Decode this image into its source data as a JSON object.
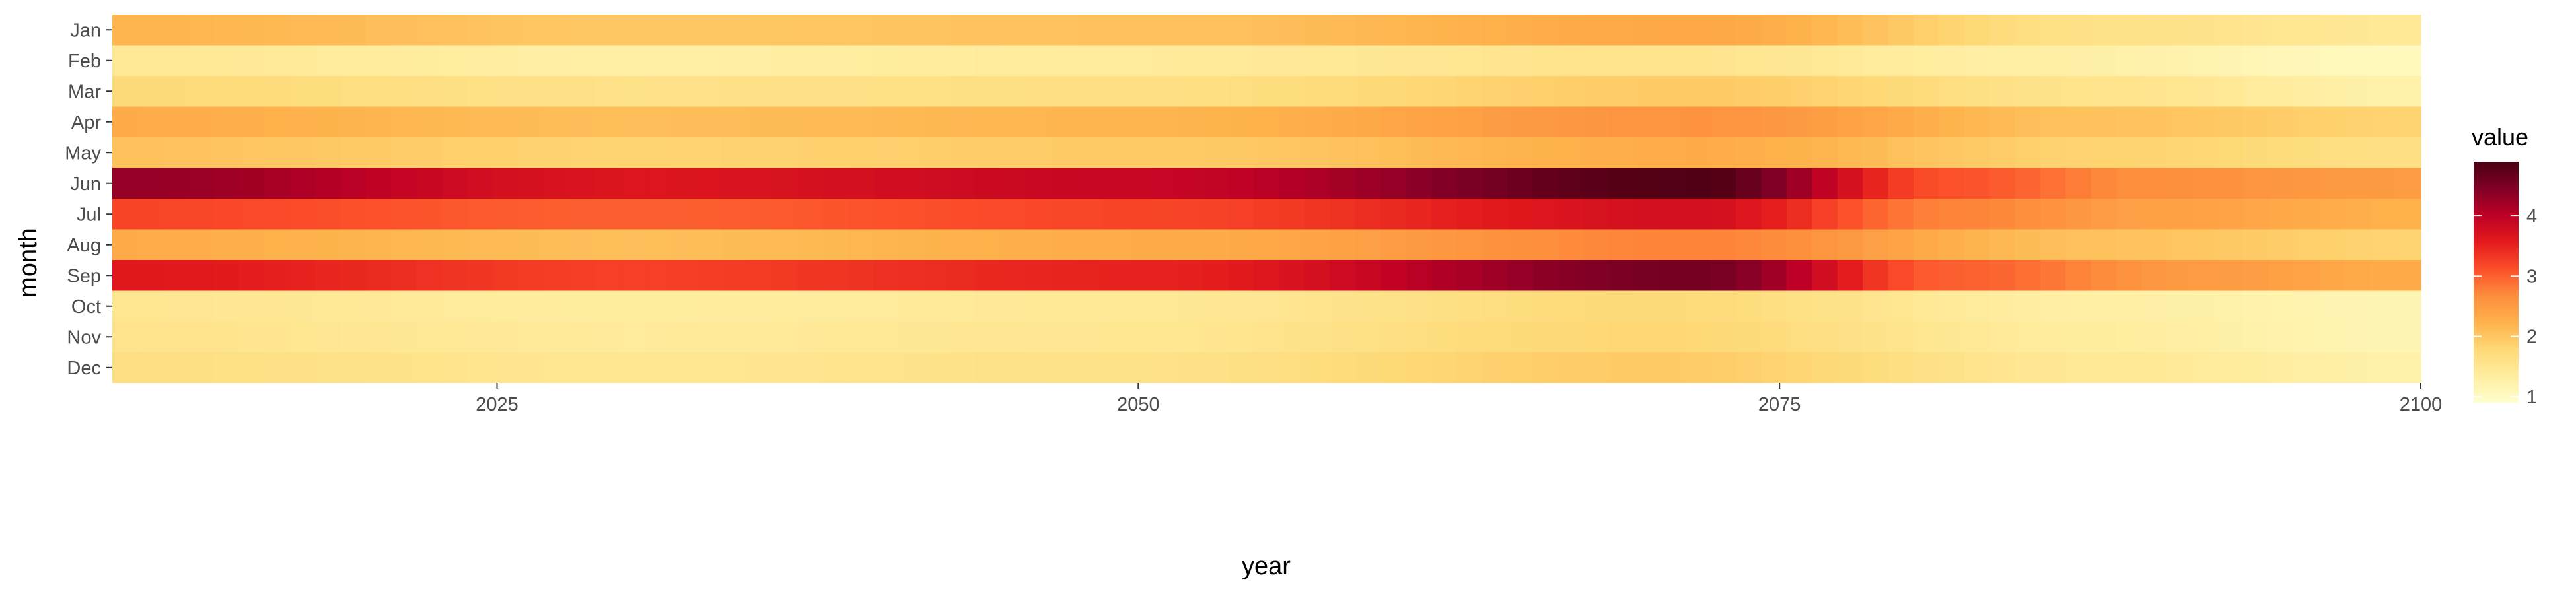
{
  "chart_data": {
    "type": "heatmap",
    "title": "",
    "xlabel": "year",
    "ylabel": "month",
    "x_range": [
      2010,
      2100
    ],
    "x_ticks": [
      2025,
      2050,
      2075,
      2100
    ],
    "months": [
      "Jan",
      "Feb",
      "Mar",
      "Apr",
      "May",
      "Jun",
      "Jul",
      "Aug",
      "Sep",
      "Oct",
      "Nov",
      "Dec"
    ],
    "legend": {
      "title": "value",
      "position": "right",
      "range": [
        0.9,
        4.9
      ],
      "ticks": [
        1,
        2,
        3,
        4
      ]
    },
    "color_scale": {
      "name": "YlOrRd",
      "stops": [
        "#ffffcc",
        "#ffeda0",
        "#fed976",
        "#feb24c",
        "#fd8d3c",
        "#fc4e2a",
        "#e31a1c",
        "#bd0026",
        "#800026",
        "#4a0012"
      ]
    },
    "series": [
      {
        "name": "Jan",
        "key_years": [
          2010,
          2030,
          2050,
          2072,
          2088,
          2100
        ],
        "key_values": [
          2.2,
          2.0,
          2.05,
          2.35,
          1.6,
          1.45
        ]
      },
      {
        "name": "Feb",
        "key_years": [
          2010,
          2030,
          2050,
          2070,
          2085,
          2100
        ],
        "key_values": [
          1.45,
          1.3,
          1.4,
          1.55,
          1.3,
          1.05
        ]
      },
      {
        "name": "Mar",
        "key_years": [
          2010,
          2030,
          2050,
          2072,
          2088,
          2100
        ],
        "key_values": [
          1.75,
          1.6,
          1.65,
          1.95,
          1.55,
          1.25
        ]
      },
      {
        "name": "Apr",
        "key_years": [
          2010,
          2030,
          2050,
          2072,
          2088,
          2100
        ],
        "key_values": [
          2.3,
          2.1,
          2.2,
          2.6,
          2.05,
          1.85
        ]
      },
      {
        "name": "May",
        "key_years": [
          2010,
          2030,
          2050,
          2072,
          2088,
          2100
        ],
        "key_values": [
          2.05,
          1.85,
          1.95,
          2.3,
          1.85,
          1.65
        ]
      },
      {
        "name": "Jun",
        "key_years": [
          2010,
          2030,
          2050,
          2072,
          2082,
          2090,
          2100
        ],
        "key_values": [
          4.3,
          3.65,
          3.9,
          4.85,
          3.1,
          2.65,
          2.5
        ]
      },
      {
        "name": "Jul",
        "key_years": [
          2010,
          2030,
          2050,
          2072,
          2082,
          2090,
          2100
        ],
        "key_values": [
          3.2,
          3.0,
          3.2,
          3.75,
          2.75,
          2.45,
          2.25
        ]
      },
      {
        "name": "Aug",
        "key_years": [
          2010,
          2030,
          2050,
          2072,
          2088,
          2100
        ],
        "key_values": [
          2.3,
          2.1,
          2.3,
          2.75,
          2.05,
          1.85
        ]
      },
      {
        "name": "Sep",
        "key_years": [
          2010,
          2030,
          2050,
          2072,
          2082,
          2092,
          2100
        ],
        "key_values": [
          3.6,
          3.25,
          3.5,
          4.55,
          3.0,
          2.5,
          2.3
        ]
      },
      {
        "name": "Oct",
        "key_years": [
          2010,
          2030,
          2050,
          2070,
          2088,
          2100
        ],
        "key_values": [
          1.5,
          1.35,
          1.45,
          1.75,
          1.3,
          1.15
        ]
      },
      {
        "name": "Nov",
        "key_years": [
          2010,
          2030,
          2050,
          2070,
          2088,
          2100
        ],
        "key_values": [
          1.55,
          1.4,
          1.5,
          1.8,
          1.35,
          1.15
        ]
      },
      {
        "name": "Dec",
        "key_years": [
          2010,
          2030,
          2050,
          2070,
          2088,
          2100
        ],
        "key_values": [
          1.65,
          1.5,
          1.6,
          1.95,
          1.45,
          1.25
        ]
      }
    ]
  }
}
